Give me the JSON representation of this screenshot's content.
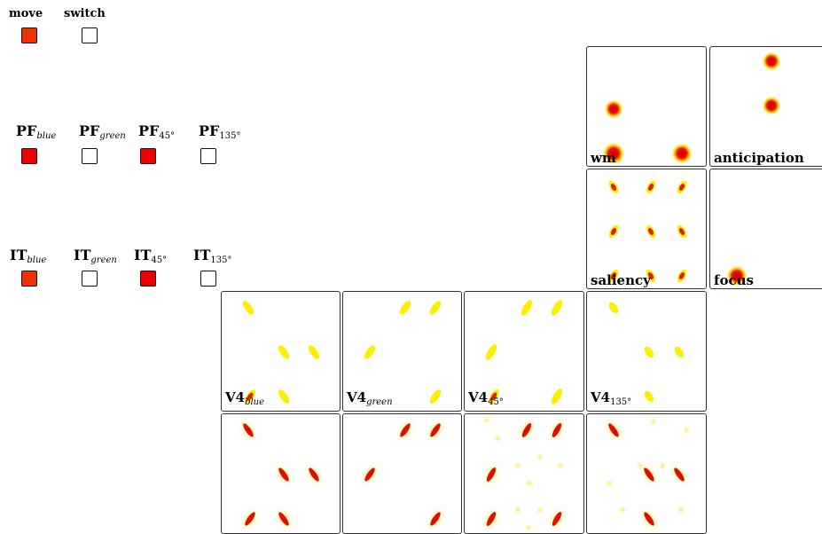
{
  "colors": {
    "active": "#ee2200",
    "active_strong": "#ee0000",
    "inactive": "#ffffff",
    "yellow": "#ffee00",
    "red": "#dd0000"
  },
  "motor": {
    "move": {
      "label": "move",
      "active": true
    },
    "switch": {
      "label": "switch",
      "active": false
    }
  },
  "pf": {
    "units": [
      {
        "main": "PF",
        "sub": "blue",
        "active": true
      },
      {
        "main": "PF",
        "sub": "green",
        "active": false
      },
      {
        "main": "PF",
        "sub": "45°",
        "active": true
      },
      {
        "main": "PF",
        "sub": "135°",
        "active": false
      }
    ]
  },
  "it": {
    "units": [
      {
        "main": "IT",
        "sub": "blue",
        "active": true
      },
      {
        "main": "IT",
        "sub": "green",
        "active": false
      },
      {
        "main": "IT",
        "sub": "45°",
        "active": true
      },
      {
        "main": "IT",
        "sub": "135°",
        "active": false
      }
    ]
  },
  "maps": {
    "wm": {
      "label": "wm"
    },
    "anticipation": {
      "label": "anticipation"
    },
    "saliency": {
      "label": "saliency"
    },
    "focus": {
      "label": "focus"
    },
    "v4_blue": {
      "main": "V4",
      "sub": "blue"
    },
    "v4_green": {
      "main": "V4",
      "sub": "green"
    },
    "v4_45": {
      "main": "V4",
      "sub": "45°"
    },
    "v4_135": {
      "main": "V4",
      "sub": "135°"
    }
  }
}
